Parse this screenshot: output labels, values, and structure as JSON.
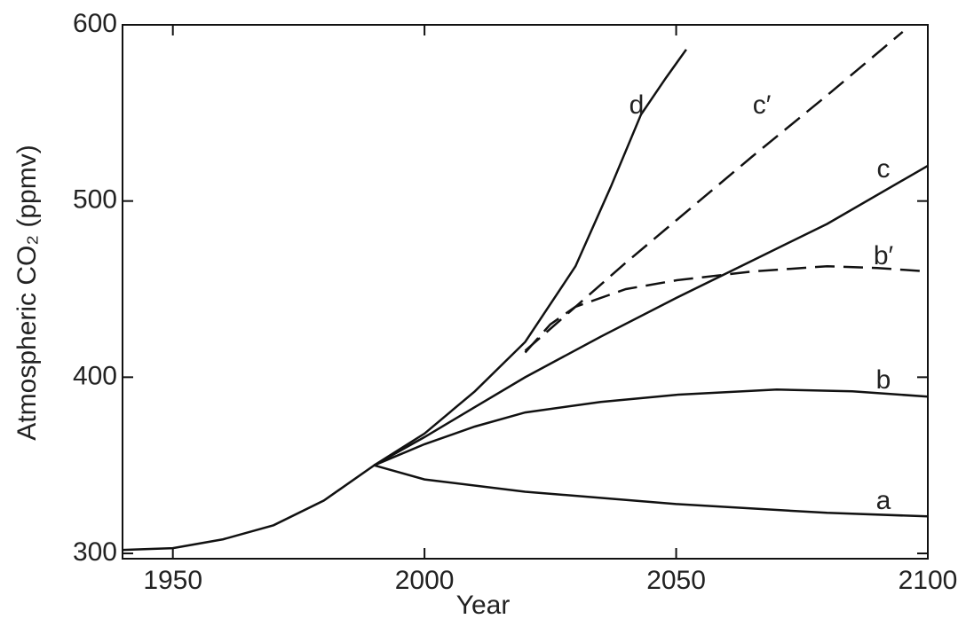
{
  "chart_data": {
    "type": "line",
    "xlabel": "Year",
    "ylabel": "Atmospheric CO₂ (ppmv)",
    "xlim": [
      1940,
      2100
    ],
    "ylim": [
      297,
      600
    ],
    "xticks": [
      1950,
      2000,
      2050,
      2100
    ],
    "yticks": [
      300,
      400,
      500,
      600
    ],
    "series": [
      {
        "name": "a",
        "color": "#111111",
        "dashed": false,
        "x": [
          1940,
          1950,
          1960,
          1970,
          1980,
          1990,
          2000,
          2020,
          2050,
          2080,
          2100
        ],
        "values": [
          302,
          303,
          308,
          316,
          330,
          350,
          342,
          335,
          328,
          323,
          321
        ]
      },
      {
        "name": "b",
        "color": "#111111",
        "dashed": false,
        "x": [
          1990,
          2000,
          2010,
          2020,
          2035,
          2050,
          2070,
          2085,
          2100
        ],
        "values": [
          350,
          362,
          372,
          380,
          386,
          390,
          393,
          392,
          389
        ]
      },
      {
        "name": "c",
        "color": "#111111",
        "dashed": false,
        "x": [
          1990,
          2000,
          2010,
          2020,
          2035,
          2050,
          2065,
          2080,
          2100
        ],
        "values": [
          350,
          366,
          383,
          400,
          423,
          445,
          466,
          487,
          520
        ]
      },
      {
        "name": "d",
        "color": "#111111",
        "dashed": false,
        "x": [
          1990,
          2000,
          2010,
          2020,
          2030,
          2037,
          2043,
          2048,
          2052
        ],
        "values": [
          350,
          368,
          392,
          420,
          463,
          508,
          549,
          570,
          586
        ]
      },
      {
        "name": "b′",
        "color": "#111111",
        "dashed": true,
        "x": [
          2020,
          2025,
          2030,
          2040,
          2050,
          2065,
          2080,
          2090,
          2100
        ],
        "values": [
          414,
          430,
          440,
          450,
          455,
          460,
          463,
          462,
          460
        ]
      },
      {
        "name": "c′",
        "color": "#111111",
        "dashed": true,
        "x": [
          2020,
          2030,
          2040,
          2050,
          2065,
          2080,
          2095
        ],
        "values": [
          415,
          440,
          465,
          489,
          525,
          560,
          596
        ]
      }
    ]
  }
}
